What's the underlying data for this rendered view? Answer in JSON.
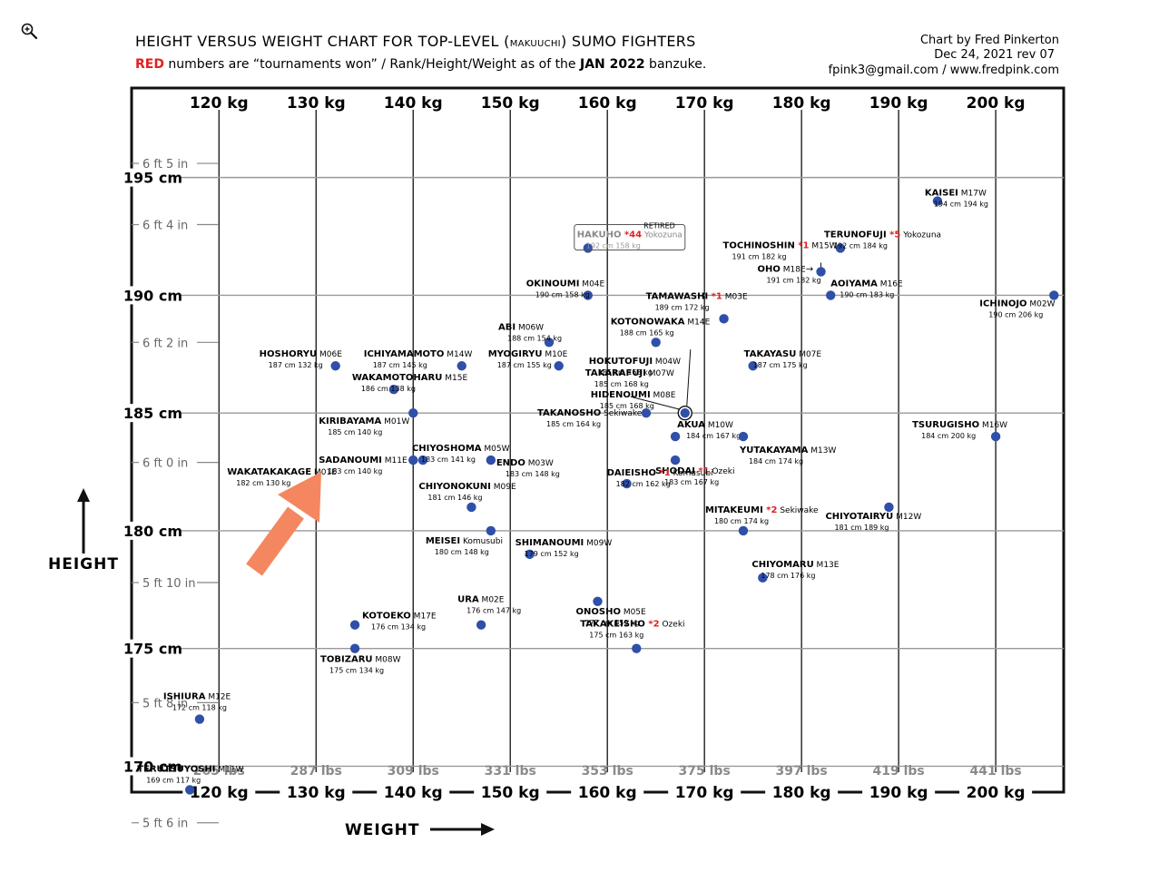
{
  "ui": {
    "zoom_icon": "magnifier-zoom-icon"
  },
  "header": {
    "title_a": "HEIGHT VERSUS WEIGHT CHART FOR TOP-LEVEL (",
    "title_b": "MAKUUCHI",
    "title_c": ") SUMO FIGHTERS",
    "subtitle_red": "RED",
    "subtitle_a": " numbers are “tournaments won” / Rank/Height/Weight as of the ",
    "subtitle_b": "JAN 2022",
    "subtitle_c": " banzuke.",
    "credit_1": "Chart by Fred Pinkerton",
    "credit_2": "Dec 24, 2021 rev 07",
    "credit_3": "fpink3@gmail.com / www.fredpink.com"
  },
  "chart_data": {
    "type": "scatter",
    "title": "HEIGHT VERSUS WEIGHT CHART FOR TOP-LEVEL (MAKUUCHI) SUMO FIGHTERS",
    "xlabel": "WEIGHT",
    "ylabel": "HEIGHT",
    "xlim": [
      111,
      207
    ],
    "ylim": [
      168.9,
      198.8
    ],
    "grid": true,
    "colors": {
      "point": "#2f4fa8",
      "grid": "#999999",
      "accent": "#e02020",
      "arrow": "#f4875f"
    },
    "x_ticks": [
      "120 kg",
      "130 kg",
      "140 kg",
      "150 kg",
      "160 kg",
      "170 kg",
      "180 kg",
      "190 kg",
      "200 kg"
    ],
    "x_tick_values": [
      120,
      130,
      140,
      150,
      160,
      170,
      180,
      190,
      200
    ],
    "lbs_ticks": [
      "265 lbs",
      "287 lbs",
      "309 lbs",
      "331 lbs",
      "353 lbs",
      "375 lbs",
      "397 lbs",
      "419 lbs",
      "441 lbs"
    ],
    "y_ticks": [
      "170 cm",
      "175 cm",
      "180 cm",
      "185 cm",
      "190 cm",
      "195 cm"
    ],
    "y_tick_values": [
      170,
      175,
      180,
      185,
      190,
      195
    ],
    "ft_ticks": [
      {
        "label": "6 ft 5 in",
        "cm": 195.6
      },
      {
        "label": "6 ft 4 in",
        "cm": 193.0
      },
      {
        "label": "6 ft 2 in",
        "cm": 188.0
      },
      {
        "label": "6 ft 0 in",
        "cm": 182.9
      },
      {
        "label": "5 ft 10 in",
        "cm": 177.8
      },
      {
        "label": "5 ft 8 in",
        "cm": 172.7
      },
      {
        "label": "5 ft 6 in",
        "cm": 167.6
      }
    ],
    "points": [
      {
        "name": "KAISEI",
        "rank": "M17W",
        "stats": "194 cm  194 kg",
        "height": 194,
        "weight": 194
      },
      {
        "name": "TERUNOFUJI",
        "wins": "*5",
        "rank": "Yokozuna",
        "stats": "192 cm  184 kg",
        "height": 192,
        "weight": 184
      },
      {
        "name": "HAKUHO",
        "wins": "*44",
        "rank": "Yokozuna",
        "note": "RETIRED",
        "stats": "192 cm  158 kg",
        "height": 192,
        "weight": 158
      },
      {
        "name": "TOCHINOSHIN",
        "wins": "*1",
        "rank": "M15W",
        "stats": "191 cm  182 kg",
        "height": 191,
        "weight": 182
      },
      {
        "name": "OHO",
        "rank": "M18E",
        "stats": "191 cm  182 kg",
        "height": 191,
        "weight": 182
      },
      {
        "name": "OKINOUMI",
        "rank": "M04E",
        "stats": "190 cm  158 kg",
        "height": 190,
        "weight": 158
      },
      {
        "name": "TAMAWASHI",
        "wins": "*1",
        "rank": "M03E",
        "stats": "189 cm  172 kg",
        "height": 189,
        "weight": 172
      },
      {
        "name": "AOIYAMA",
        "rank": "M16E",
        "stats": "190 cm  183 kg",
        "height": 190,
        "weight": 183
      },
      {
        "name": "ICHINOJO",
        "rank": "M02W",
        "stats": "190 cm  206 kg",
        "height": 190,
        "weight": 206
      },
      {
        "name": "ABI",
        "rank": "M06W",
        "stats": "188 cm  154 kg",
        "height": 188,
        "weight": 154
      },
      {
        "name": "KOTONOWAKA",
        "rank": "M14E",
        "stats": "188 cm  165 kg",
        "height": 188,
        "weight": 165
      },
      {
        "name": "HOSHORYU",
        "rank": "M06E",
        "stats": "187 cm  132 kg",
        "height": 187,
        "weight": 132
      },
      {
        "name": "ICHIYAMAMOTO",
        "rank": "M14W",
        "stats": "187 cm  145 kg",
        "height": 187,
        "weight": 145
      },
      {
        "name": "MYOGIRYU",
        "rank": "M10E",
        "stats": "187 cm  155 kg",
        "height": 187,
        "weight": 155
      },
      {
        "name": "HOKUTOFUJI",
        "rank": "M04W",
        "stats": "185 cm  168 kg",
        "height": 185,
        "weight": 168
      },
      {
        "name": "TAKARAFUJI",
        "rank": "M07W",
        "stats": "185 cm  168 kg",
        "height": 185,
        "weight": 168
      },
      {
        "name": "HIDENOUMI",
        "rank": "M08E",
        "stats": "185 cm  168 kg",
        "height": 185,
        "weight": 168
      },
      {
        "name": "TAKAYASU",
        "rank": "M07E",
        "stats": "187 cm  175 kg",
        "height": 187,
        "weight": 175
      },
      {
        "name": "WAKAMOTOHARU",
        "rank": "M15E",
        "stats": "186 cm  138 kg",
        "height": 186,
        "weight": 138
      },
      {
        "name": "KIRIBAYAMA",
        "rank": "M01W",
        "stats": "185 cm  140 kg",
        "height": 185,
        "weight": 140
      },
      {
        "name": "TAKANOSHO",
        "rank": "Sekiwake",
        "stats": "185 cm  164 kg",
        "height": 185,
        "weight": 164
      },
      {
        "name": "AKUA",
        "rank": "M10W",
        "stats": "184 cm  167 kg",
        "height": 184,
        "weight": 167
      },
      {
        "name": "YUTAKAYAMA",
        "rank": "M13W",
        "stats": "184 cm  174 kg",
        "height": 184,
        "weight": 174
      },
      {
        "name": "TSURUGISHO",
        "rank": "M16W",
        "stats": "184 cm  200 kg",
        "height": 184,
        "weight": 200
      },
      {
        "name": "CHIYOSHOMA",
        "rank": "M05W",
        "stats": "183 cm  141 kg",
        "height": 183,
        "weight": 141
      },
      {
        "name": "SADANOUMI",
        "rank": "M11E",
        "stats": "183 cm  140 kg",
        "height": 183,
        "weight": 140
      },
      {
        "name": "ENDO",
        "rank": "M03W",
        "stats": "183 cm  148 kg",
        "height": 183,
        "weight": 148
      },
      {
        "name": "SHODAI",
        "wins": "*1",
        "rank": "Ozeki",
        "stats": "183 cm  167 kg",
        "height": 183,
        "weight": 167
      },
      {
        "name": "WAKATAKAKAGE",
        "rank": "M01E",
        "stats": "182 cm  130 kg",
        "height": 182,
        "weight": 130
      },
      {
        "name": "CHIYONOKUNI",
        "rank": "M09E",
        "stats": "181 cm  146 kg",
        "height": 181,
        "weight": 146
      },
      {
        "name": "DAIEISHO",
        "wins": "*1",
        "rank": "Komusubi",
        "stats": "182 cm  162 kg",
        "height": 182,
        "weight": 162
      },
      {
        "name": "MITAKEUMI",
        "wins": "*2",
        "rank": "Sekiwake",
        "stats": "180 cm  174 kg",
        "height": 180,
        "weight": 174
      },
      {
        "name": "CHIYOTAIRYU",
        "rank": "M12W",
        "stats": "181 cm  189 kg",
        "height": 181,
        "weight": 189
      },
      {
        "name": "MEISEI",
        "rank": "Komusubi",
        "stats": "180 cm  148 kg",
        "height": 180,
        "weight": 148
      },
      {
        "name": "SHIMANOUMI",
        "rank": "M09W",
        "stats": "179 cm  152 kg",
        "height": 179,
        "weight": 152
      },
      {
        "name": "CHIYOMARU",
        "rank": "M13E",
        "stats": "178 cm  176 kg",
        "height": 178,
        "weight": 176
      },
      {
        "name": "ONOSHO",
        "rank": "M05E",
        "stats": "177 cm  159 kg",
        "height": 177,
        "weight": 159
      },
      {
        "name": "URA",
        "rank": "M02E",
        "stats": "176 cm  147 kg",
        "height": 176,
        "weight": 147
      },
      {
        "name": "KOTOEKO",
        "rank": "M17E",
        "stats": "176 cm  134 kg",
        "height": 176,
        "weight": 134
      },
      {
        "name": "TAKAKEISHO",
        "wins": "*2",
        "rank": "Ozeki",
        "stats": "175 cm  163 kg",
        "height": 175,
        "weight": 163
      },
      {
        "name": "TOBIZARU",
        "rank": "M08W",
        "stats": "175 cm  134 kg",
        "height": 175,
        "weight": 134
      },
      {
        "name": "ISHIURA",
        "rank": "M12E",
        "stats": "172 cm  118 kg",
        "height": 172,
        "weight": 118
      },
      {
        "name": "TERUTSUYOSHI",
        "rank": "M11W",
        "stats": "169 cm  117 kg",
        "height": 169,
        "weight": 117
      }
    ],
    "annotations": [
      "HEIGHT",
      "WEIGHT"
    ]
  }
}
